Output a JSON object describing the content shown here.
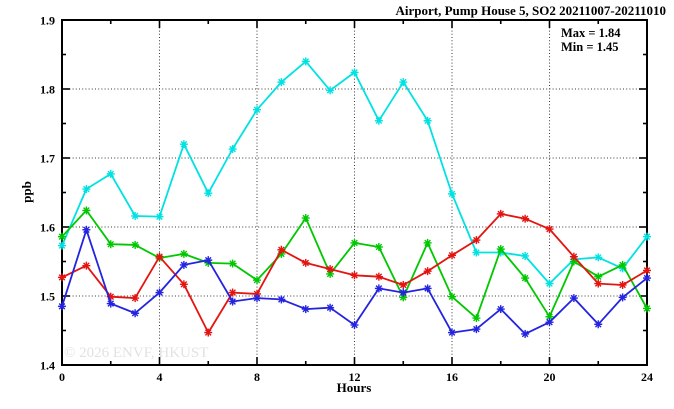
{
  "title": "Airport, Pump House 5, SO2 20211007-20211010",
  "annotations": {
    "max": "Max = 1.84",
    "min": "Min = 1.45"
  },
  "watermark": "© 2026 ENVF, HKUST",
  "chart_data": {
    "type": "line",
    "title": "Airport, Pump House 5, SO2 20211007-20211010",
    "xlabel": "Hours",
    "ylabel": "ppb",
    "xlim": [
      0,
      24
    ],
    "ylim": [
      1.4,
      1.9
    ],
    "x_major_ticks": [
      0,
      4,
      8,
      12,
      16,
      20,
      24
    ],
    "x_minor_ticks": [
      2,
      6,
      10,
      14,
      18,
      22
    ],
    "y_major_ticks": [
      1.4,
      1.5,
      1.6,
      1.7,
      1.8,
      1.9
    ],
    "y_minor_ticks": [
      1.45,
      1.55,
      1.65,
      1.75,
      1.85
    ],
    "grid": {
      "h_lines": [
        1.5,
        1.6,
        1.7,
        1.8
      ],
      "v_lines": [
        4,
        8,
        12,
        16,
        20
      ],
      "style": "dotted"
    },
    "legend_position": "none",
    "marker": "star",
    "x": [
      0,
      1,
      2,
      3,
      4,
      5,
      6,
      7,
      8,
      9,
      10,
      11,
      12,
      13,
      14,
      15,
      16,
      17,
      18,
      19,
      20,
      21,
      22,
      23,
      24
    ],
    "series": [
      {
        "name": "cyan",
        "color": "#00e2e2",
        "values": [
          1.573,
          1.655,
          1.677,
          1.616,
          1.615,
          1.72,
          1.649,
          1.713,
          1.77,
          1.81,
          1.84,
          1.798,
          1.824,
          1.754,
          1.81,
          1.754,
          1.648,
          1.563,
          1.563,
          1.558,
          1.518,
          1.553,
          1.556,
          1.54,
          1.586
        ]
      },
      {
        "name": "green",
        "color": "#00c800",
        "values": [
          1.586,
          1.624,
          1.575,
          1.574,
          1.555,
          1.561,
          1.548,
          1.547,
          1.523,
          1.561,
          1.613,
          1.532,
          1.577,
          1.571,
          1.498,
          1.577,
          1.499,
          1.468,
          1.568,
          1.526,
          1.47,
          1.55,
          1.528,
          1.545,
          1.482
        ]
      },
      {
        "name": "red",
        "color": "#e41410",
        "values": [
          1.527,
          1.544,
          1.499,
          1.497,
          1.557,
          1.517,
          1.447,
          1.505,
          1.503,
          1.567,
          1.548,
          1.539,
          1.53,
          1.528,
          1.516,
          1.536,
          1.559,
          1.581,
          1.619,
          1.612,
          1.597,
          1.557,
          1.518,
          1.516,
          1.537
        ]
      },
      {
        "name": "blue",
        "color": "#2424e0",
        "values": [
          1.485,
          1.596,
          1.489,
          1.475,
          1.505,
          1.545,
          1.552,
          1.492,
          1.497,
          1.495,
          1.481,
          1.483,
          1.458,
          1.511,
          1.505,
          1.511,
          1.447,
          1.452,
          1.481,
          1.445,
          1.462,
          1.497,
          1.459,
          1.498,
          1.526
        ]
      }
    ],
    "stats": {
      "max": 1.84,
      "min": 1.45
    }
  }
}
